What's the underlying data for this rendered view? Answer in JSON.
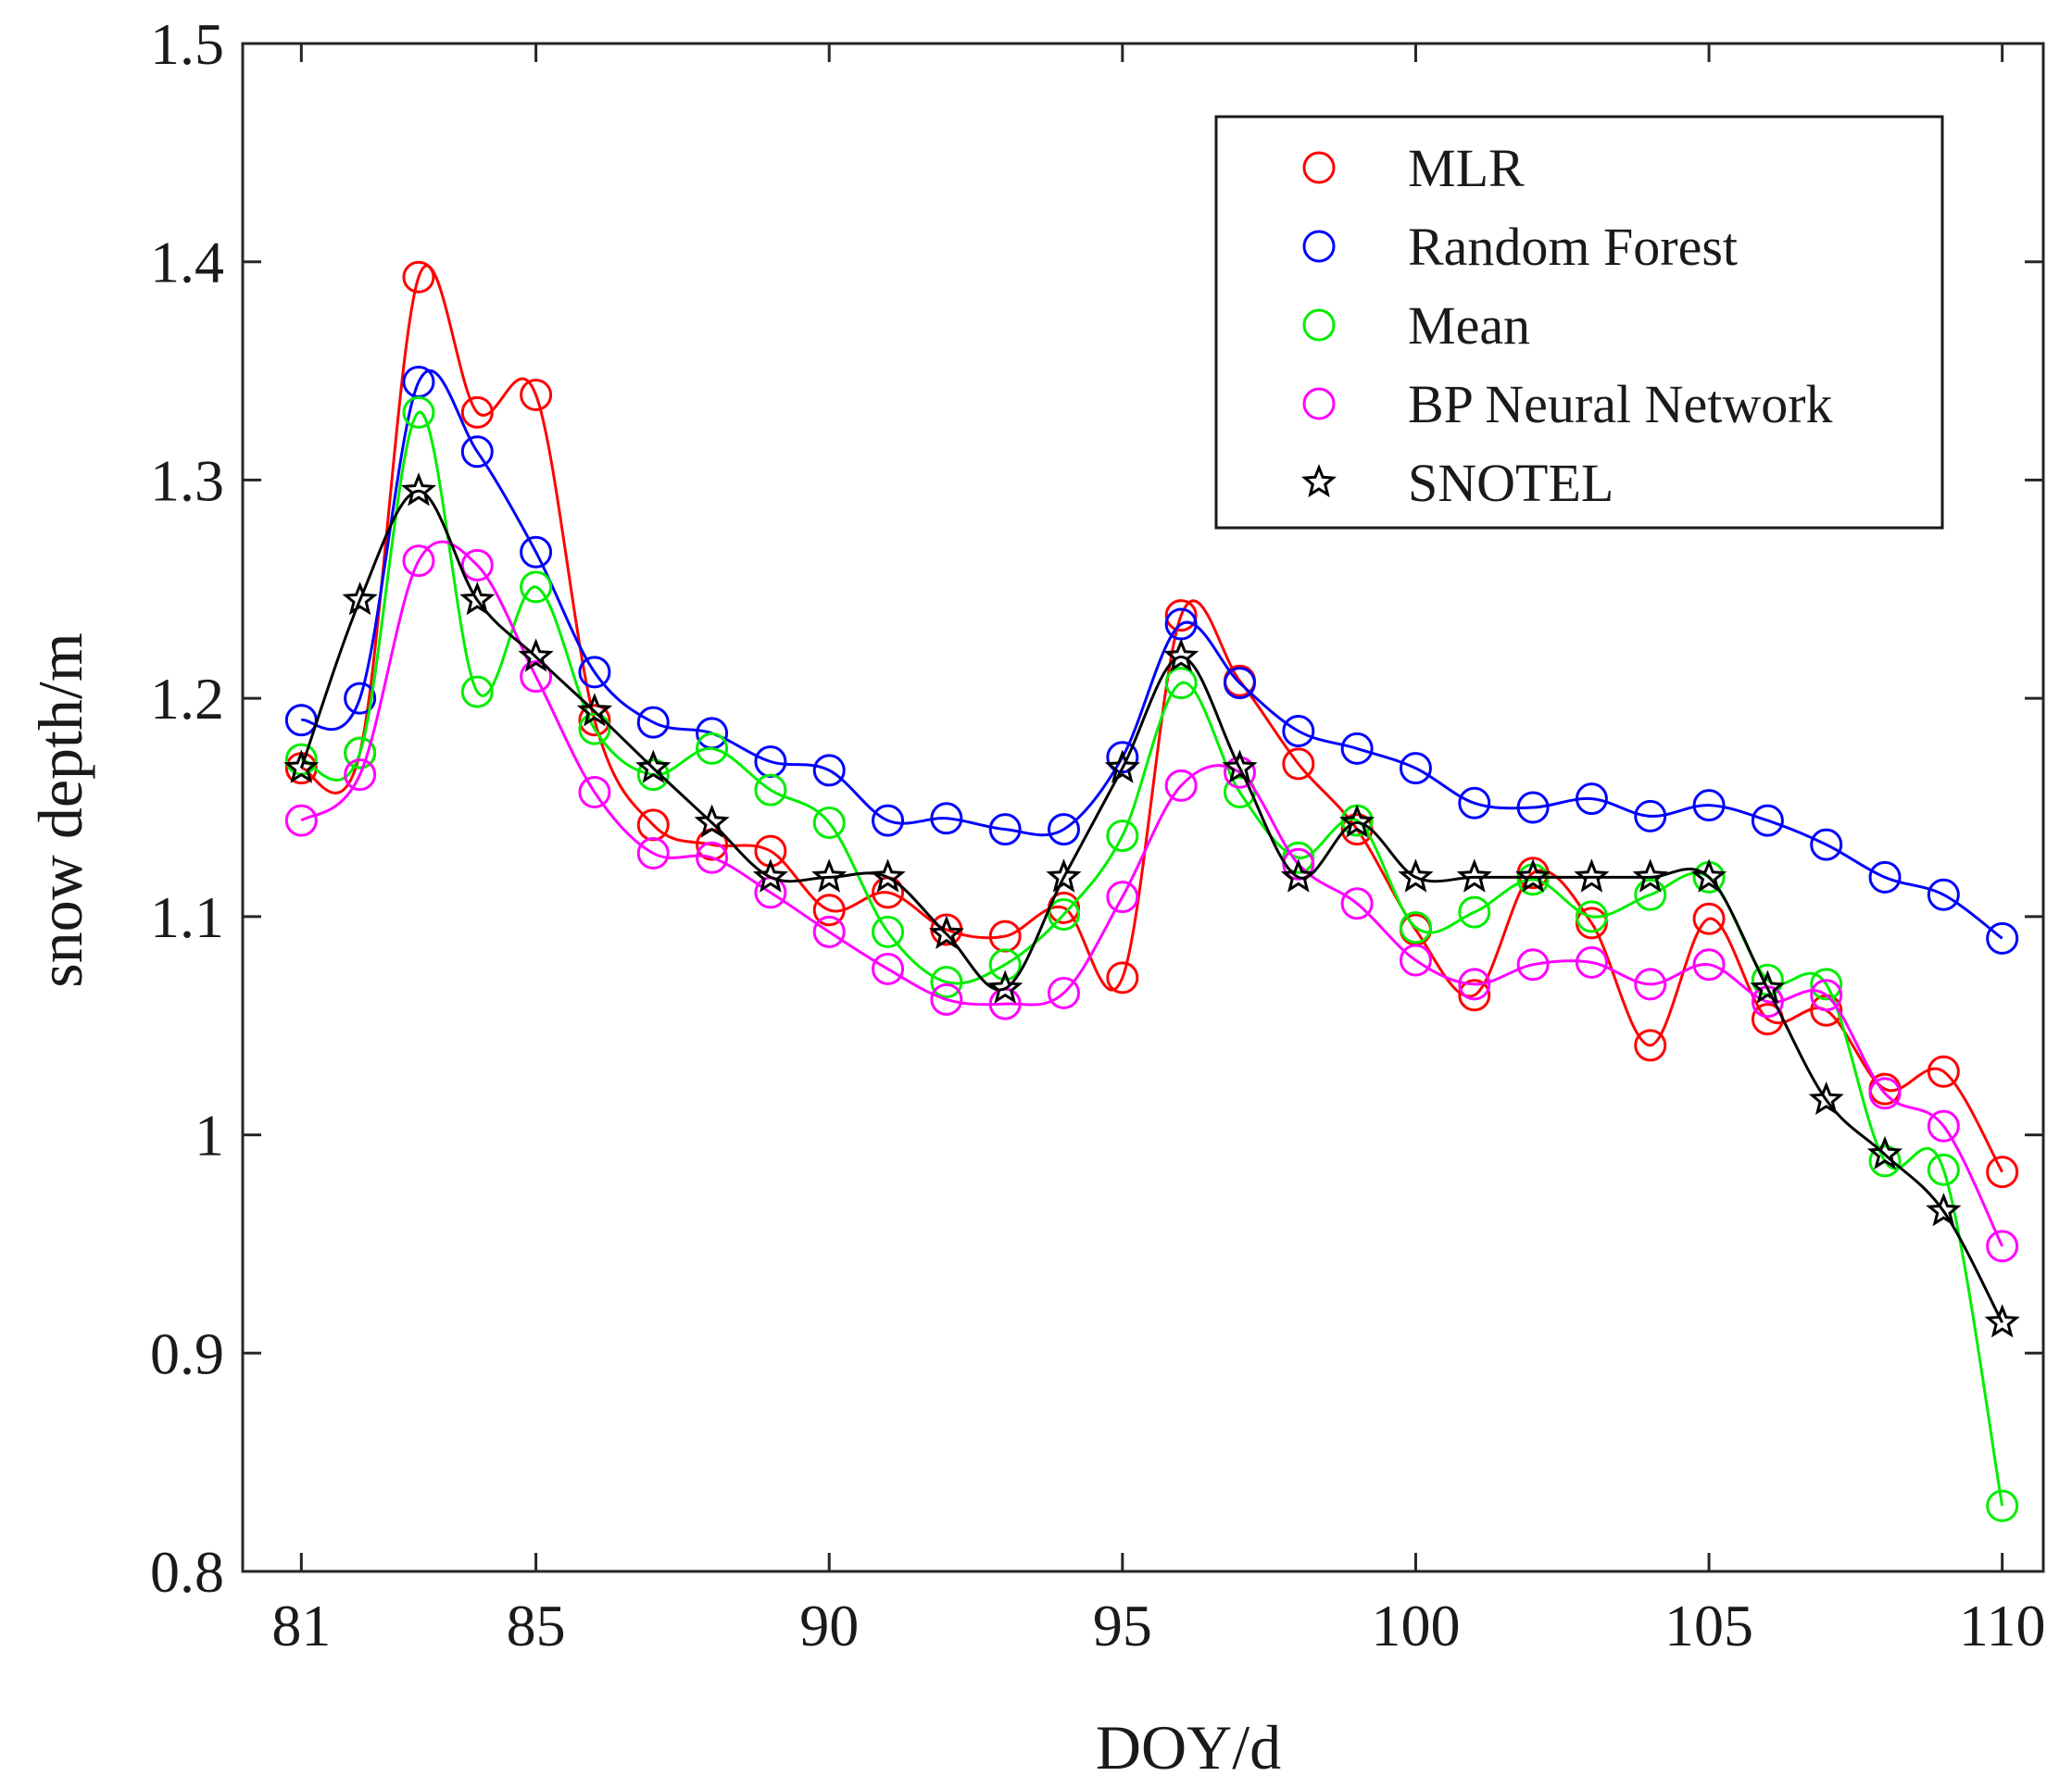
{
  "chart_data": {
    "type": "line",
    "xlabel": "DOY/d",
    "ylabel": "snow depth/m",
    "xlim": [
      80,
      110.7
    ],
    "ylim": [
      0.8,
      1.5
    ],
    "x_ticks": [
      81,
      85,
      90,
      95,
      100,
      105,
      110
    ],
    "x_tick_labels": [
      "81",
      "85",
      "90",
      "95",
      "100",
      "105",
      "110"
    ],
    "y_ticks": [
      0.8,
      0.9,
      1.0,
      1.1,
      1.2,
      1.3,
      1.4,
      1.5
    ],
    "y_tick_labels": [
      "0.8",
      "0.9",
      "1",
      "1.1",
      "1.2",
      "1.3",
      "1.4",
      "1.5"
    ],
    "legend_position": "top-right",
    "x": [
      81,
      82,
      83,
      84,
      85,
      86,
      87,
      88,
      89,
      90,
      91,
      92,
      93,
      94,
      95,
      96,
      97,
      98,
      99,
      100,
      101,
      102,
      103,
      104,
      105,
      106,
      107,
      108,
      109,
      110
    ],
    "series": [
      {
        "name": "MLR",
        "color": "#ff0000",
        "marker": "circle",
        "values": [
          1.168,
          1.175,
          1.393,
          1.331,
          1.339,
          1.19,
          1.142,
          1.133,
          1.13,
          1.103,
          1.111,
          1.094,
          1.091,
          1.104,
          1.072,
          1.238,
          1.208,
          1.17,
          1.14,
          1.094,
          1.064,
          1.12,
          1.097,
          1.041,
          1.099,
          1.053,
          1.057,
          1.021,
          1.029,
          0.983
        ]
      },
      {
        "name": "Random Forest",
        "color": "#0000ff",
        "marker": "circle",
        "values": [
          1.19,
          1.2,
          1.345,
          1.313,
          1.267,
          1.212,
          1.189,
          1.184,
          1.171,
          1.167,
          1.144,
          1.145,
          1.14,
          1.14,
          1.173,
          1.234,
          1.207,
          1.185,
          1.177,
          1.168,
          1.152,
          1.15,
          1.154,
          1.146,
          1.151,
          1.144,
          1.133,
          1.118,
          1.11,
          1.09
        ]
      },
      {
        "name": "Mean",
        "color": "#00ee00",
        "marker": "circle",
        "values": [
          1.172,
          1.175,
          1.331,
          1.203,
          1.251,
          1.186,
          1.165,
          1.177,
          1.158,
          1.143,
          1.093,
          1.07,
          1.078,
          1.101,
          1.137,
          1.207,
          1.157,
          1.127,
          1.144,
          1.095,
          1.102,
          1.117,
          1.1,
          1.11,
          1.118,
          1.071,
          1.069,
          0.988,
          0.984,
          0.83
        ]
      },
      {
        "name": "BP Neural Network",
        "color": "#ff00ff",
        "marker": "circle",
        "values": [
          1.144,
          1.165,
          1.263,
          1.261,
          1.21,
          1.157,
          1.129,
          1.127,
          1.111,
          1.093,
          1.076,
          1.062,
          1.06,
          1.065,
          1.109,
          1.16,
          1.166,
          1.124,
          1.106,
          1.08,
          1.069,
          1.078,
          1.079,
          1.069,
          1.078,
          1.061,
          1.064,
          1.019,
          1.004,
          0.949
        ]
      },
      {
        "name": "SNOTEL",
        "color": "#000000",
        "marker": "star",
        "values": [
          1.168,
          1.245,
          1.295,
          1.245,
          1.219,
          1.194,
          1.168,
          1.143,
          1.118,
          1.118,
          1.118,
          1.092,
          1.067,
          1.118,
          1.168,
          1.219,
          1.168,
          1.118,
          1.143,
          1.118,
          1.118,
          1.118,
          1.118,
          1.118,
          1.118,
          1.067,
          1.016,
          0.991,
          0.965,
          0.914
        ]
      }
    ]
  }
}
